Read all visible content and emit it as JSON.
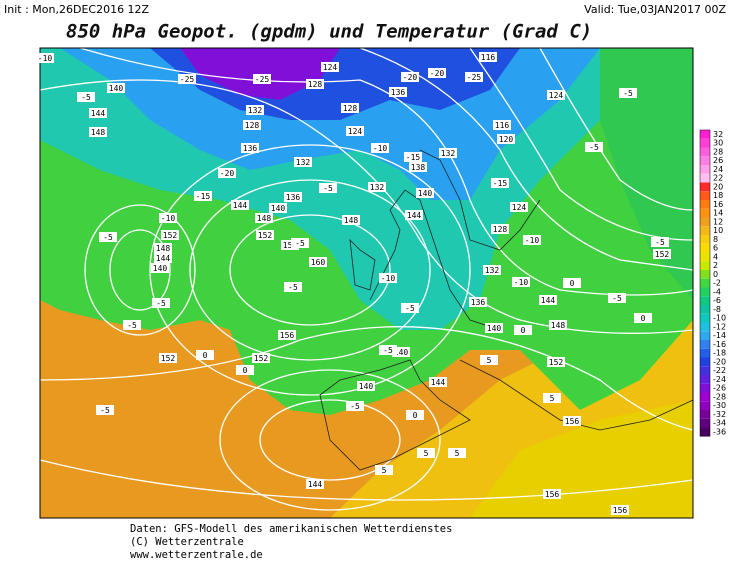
{
  "header": {
    "init": "Init : Mon,26DEC2016 12Z",
    "valid": "Valid: Tue,03JAN2017 00Z",
    "title": "850 hPa Geopot. (gpdm) und Temperatur (Grad C)"
  },
  "footer": {
    "line1": "Daten: GFS-Modell des amerikanischen Wetterdienstes",
    "line2": "(C) Wetterzentrale",
    "line3": "www.wetterzentrale.de"
  },
  "colorbar": {
    "ticks": [
      32,
      30,
      28,
      26,
      24,
      22,
      20,
      18,
      16,
      14,
      12,
      10,
      8,
      6,
      4,
      2,
      0,
      -2,
      -4,
      -6,
      -8,
      -10,
      -12,
      -14,
      -16,
      -18,
      -20,
      -22,
      -24,
      -26,
      -28,
      -30,
      -32,
      -34,
      -36
    ],
    "colors": [
      "#ff1fd2",
      "#ff3fd8",
      "#ff5fde",
      "#ff7fe4",
      "#ff9fea",
      "#ffbff0",
      "#ff2a2a",
      "#ff5a1a",
      "#ff7a10",
      "#ff9010",
      "#f0a020",
      "#f2b81a",
      "#f6cc10",
      "#f8dc00",
      "#e8e400",
      "#c8e800",
      "#80e020",
      "#40d840",
      "#20d060",
      "#10c880",
      "#10c0a0",
      "#10c8c0",
      "#20c0e0",
      "#30a8f0",
      "#3080f0",
      "#2060e8",
      "#2040e0",
      "#4030e0",
      "#6020e0",
      "#8010d8",
      "#a000d0",
      "#9000c0",
      "#780098",
      "#600080",
      "#480060"
    ]
  },
  "geopotential_labels": [
    140,
    144,
    148,
    152,
    148,
    144,
    140,
    144,
    152,
    156,
    160,
    156,
    152,
    152,
    148,
    140,
    136,
    132,
    128,
    132,
    136,
    124,
    128,
    132,
    136,
    140,
    144,
    148,
    138,
    132,
    116,
    116,
    120,
    124,
    124,
    128,
    132,
    136,
    140,
    144,
    148,
    152,
    152,
    156,
    156,
    156,
    144,
    140,
    140,
    144,
    124,
    128
  ],
  "temperature_labels": [
    -10,
    -5,
    -25,
    -25,
    -20,
    -15,
    -10,
    -5,
    -5,
    -5,
    0,
    0,
    -5,
    -5,
    -5,
    -10,
    -5,
    -5,
    -5,
    -15,
    -15,
    -20,
    -20,
    -25,
    -5,
    -5,
    -10,
    -5,
    -5,
    0,
    0,
    0,
    5,
    5,
    5,
    5,
    5,
    0,
    -5,
    -10,
    -10
  ]
}
